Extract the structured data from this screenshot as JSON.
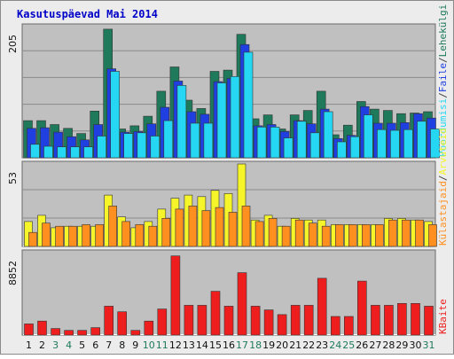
{
  "chart_data": {
    "title": "Kasutuspäevad Mai 2014",
    "type": "bar",
    "categories": [
      "1",
      "2",
      "3",
      "4",
      "5",
      "6",
      "7",
      "8",
      "9",
      "10",
      "11",
      "12",
      "13",
      "14",
      "15",
      "16",
      "17",
      "18",
      "19",
      "20",
      "21",
      "22",
      "23",
      "24",
      "25",
      "26",
      "27",
      "28",
      "29",
      "30",
      "31"
    ],
    "weekend_days": [
      "3",
      "4",
      "10",
      "11",
      "17",
      "18",
      "24",
      "25",
      "31"
    ],
    "panels": [
      {
        "max_label": "205",
        "ymax": 205,
        "series": [
          {
            "name": "Leheküljed",
            "color": "#1e7a5a",
            "values": [
              58,
              58,
              52,
              46,
              38,
              73,
              201,
              45,
              50,
              65,
              104,
              142,
              90,
              77,
              135,
              137,
              193,
              61,
              67,
              45,
              67,
              74,
              104,
              36,
              51,
              88,
              76,
              74,
              69,
              70,
              72
            ]
          },
          {
            "name": "Faile",
            "color": "#1f3fe0",
            "values": [
              46,
              47,
              40,
              33,
              28,
              52,
              139,
              40,
              41,
              53,
              79,
              120,
              72,
              68,
              119,
              124,
              177,
              50,
              52,
              41,
              58,
              53,
              76,
              30,
              35,
              80,
              54,
              54,
              55,
              69,
              62
            ]
          },
          {
            "name": "Pöördumisi",
            "color": "#26d7f3",
            "values": [
              21,
              18,
              17,
              17,
              17,
              34,
              135,
              38,
              39,
              34,
              58,
              113,
              54,
              54,
              117,
              127,
              165,
              48,
              48,
              31,
              57,
              39,
              72,
              25,
              33,
              67,
              44,
              43,
              44,
              57,
              45
            ]
          }
        ]
      },
      {
        "max_label": "53",
        "ymax": 53,
        "series": [
          {
            "name": "Külastajaid",
            "color": "#f5f52a",
            "values": [
              16,
              20,
              12,
              13,
              13,
              13,
              33,
              19,
              12,
              16,
              24,
              31,
              33,
              32,
              36,
              34,
              53,
              17,
              20,
              13,
              18,
              17,
              17,
              14,
              14,
              14,
              14,
              18,
              18,
              17,
              16
            ]
          },
          {
            "name": "Arvuteid",
            "color": "#ff9020",
            "values": [
              9,
              15,
              13,
              13,
              14,
              14,
              26,
              16,
              14,
              13,
              18,
              24,
              26,
              23,
              25,
              22,
              26,
              16,
              18,
              13,
              17,
              15,
              13,
              14,
              14,
              14,
              14,
              17,
              17,
              17,
              14
            ]
          }
        ]
      },
      {
        "max_label": "8852",
        "ymax": 8852,
        "series": [
          {
            "name": "KBaite",
            "color": "#ee1e1e",
            "values": [
              1200,
              1500,
              700,
              500,
              500,
              800,
              3100,
              2500,
              500,
              1500,
              2800,
              8500,
              3200,
              3200,
              4700,
              3100,
              6700,
              3100,
              2700,
              2200,
              3200,
              3200,
              6100,
              2000,
              2000,
              5800,
              3200,
              3200,
              3400,
              3400,
              3100
            ]
          }
        ]
      }
    ],
    "legend_right_1": [
      "Pöördumisi",
      "Faile",
      "Lehekülgi"
    ],
    "legend_right_2": [
      "Külastajaid",
      "Arvuteid"
    ],
    "legend_right_3": [
      "KBaite"
    ],
    "legend_separator": "/",
    "grid": true
  },
  "colors": {
    "background": "#ececec",
    "plot_bg": "#c0c0c0",
    "gridline": "#8a8a8a",
    "title": "#0000c8",
    "weekday_label": "#101010",
    "weekend_label": "#1e7a5a",
    "legend_separator": "#404040"
  }
}
